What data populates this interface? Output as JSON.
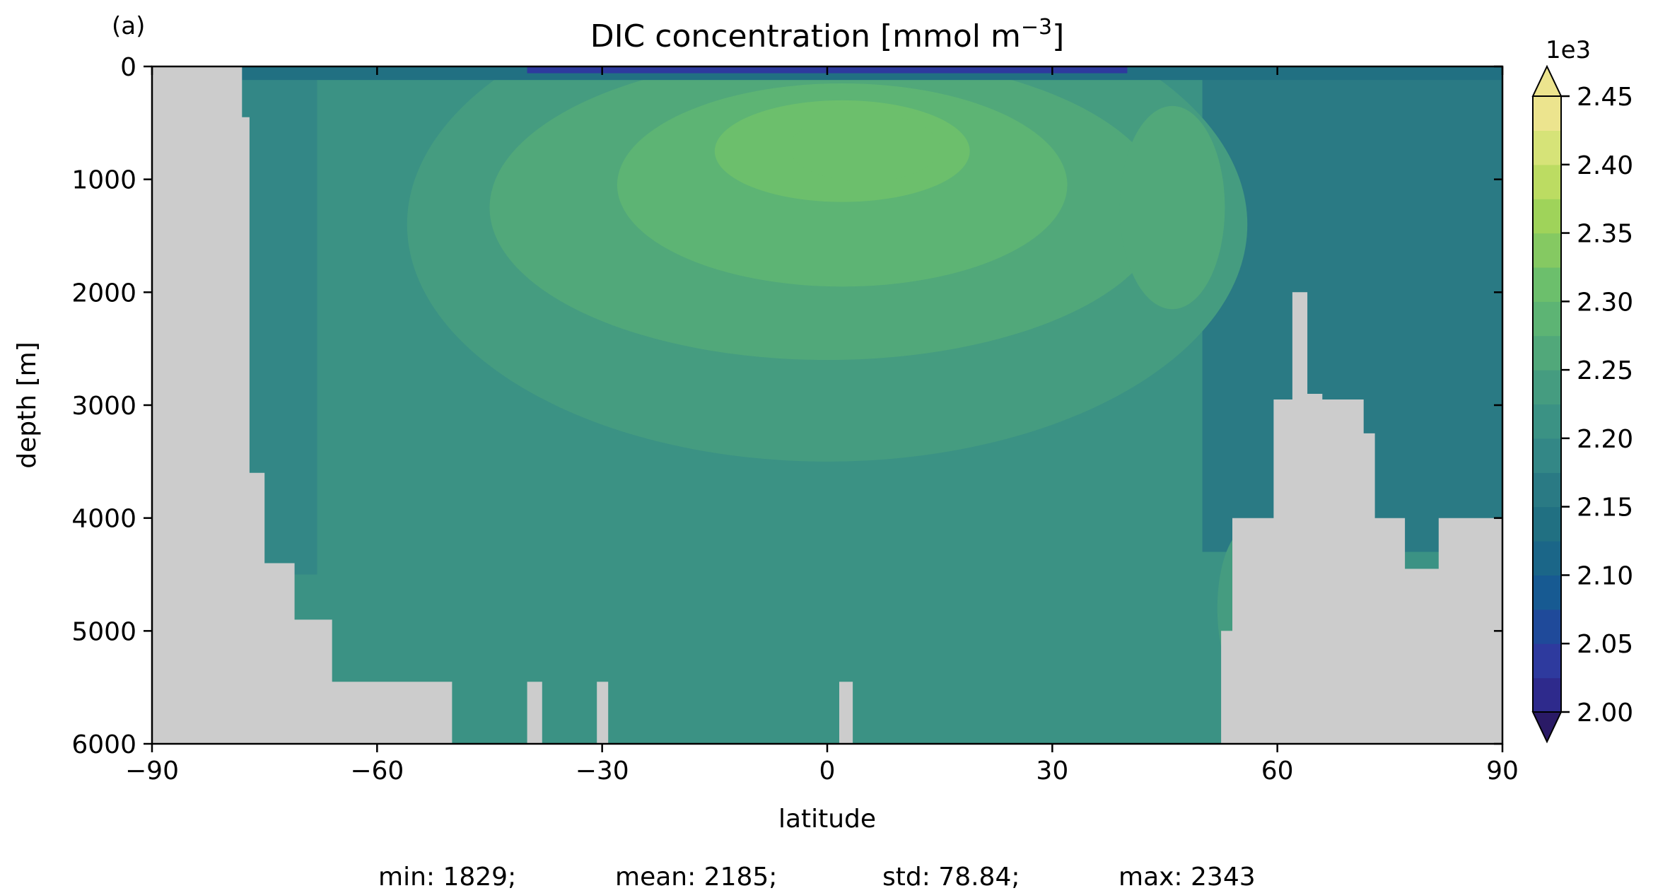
{
  "chart_data": {
    "type": "heatmap",
    "panel_label": "(a)",
    "title": "DIC concentration [mmol m",
    "title_superscript": "−3",
    "title_suffix": "]",
    "xlabel": "latitude",
    "ylabel": "depth [m]",
    "xlim": [
      -90,
      90
    ],
    "ylim": [
      6000,
      0
    ],
    "x_ticks": [
      -90,
      -60,
      -30,
      0,
      30,
      60,
      90
    ],
    "x_tick_labels": [
      "−90",
      "−60",
      "−30",
      "0",
      "30",
      "60",
      "90"
    ],
    "y_ticks": [
      0,
      1000,
      2000,
      3000,
      4000,
      5000,
      6000
    ],
    "y_tick_labels": [
      "0",
      "1000",
      "2000",
      "3000",
      "4000",
      "5000",
      "6000"
    ],
    "colorbar": {
      "scale_label": "1e3",
      "min": 2.0,
      "max": 2.45,
      "step": 0.025,
      "extend": "both",
      "ticks": [
        2.0,
        2.05,
        2.1,
        2.15,
        2.2,
        2.25,
        2.3,
        2.35,
        2.4,
        2.45
      ],
      "tick_labels": [
        "2.00",
        "2.05",
        "2.10",
        "2.15",
        "2.20",
        "2.25",
        "2.30",
        "2.35",
        "2.40",
        "2.45"
      ]
    },
    "colormap": [
      "#2a1a66",
      "#2e2a8c",
      "#2e3a9e",
      "#1f4a9a",
      "#175a92",
      "#1b6688",
      "#217082",
      "#2a7a84",
      "#338786",
      "#3b9284",
      "#459c80",
      "#51a87a",
      "#5db474",
      "#6cbf6c",
      "#85c962",
      "#9fd35a",
      "#bcdc62",
      "#d6e378",
      "#ece48e"
    ],
    "land_color": "#cccccc",
    "stats": {
      "min": "min: 1829;",
      "mean": "mean: 2185;",
      "std": "std: 78.84;",
      "max": "max: 2343"
    }
  }
}
